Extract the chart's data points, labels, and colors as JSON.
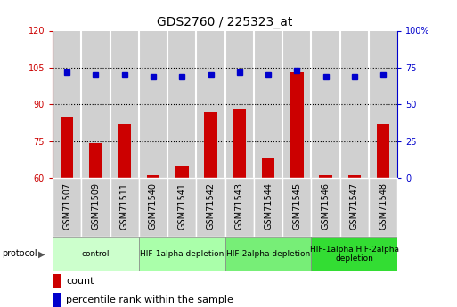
{
  "title": "GDS2760 / 225323_at",
  "samples": [
    "GSM71507",
    "GSM71509",
    "GSM71511",
    "GSM71540",
    "GSM71541",
    "GSM71542",
    "GSM71543",
    "GSM71544",
    "GSM71545",
    "GSM71546",
    "GSM71547",
    "GSM71548"
  ],
  "counts": [
    85,
    74,
    82,
    61,
    65,
    87,
    88,
    68,
    103,
    61,
    61,
    82
  ],
  "percentile_ranks": [
    72,
    70,
    70,
    69,
    69,
    70,
    72,
    70,
    73,
    69,
    69,
    70
  ],
  "ylim_left": [
    60,
    120
  ],
  "ylim_right": [
    0,
    100
  ],
  "yticks_left": [
    60,
    75,
    90,
    105,
    120
  ],
  "yticks_right": [
    0,
    25,
    50,
    75,
    100
  ],
  "groups": [
    {
      "label": "control",
      "start": 0,
      "end": 3,
      "color": "#ccffcc"
    },
    {
      "label": "HIF-1alpha depletion",
      "start": 3,
      "end": 6,
      "color": "#aaffaa"
    },
    {
      "label": "HIF-2alpha depletion",
      "start": 6,
      "end": 9,
      "color": "#77ee77"
    },
    {
      "label": "HIF-1alpha HIF-2alpha\ndepletion",
      "start": 9,
      "end": 12,
      "color": "#33dd33"
    }
  ],
  "bar_color": "#cc0000",
  "dot_color": "#0000cc",
  "grid_color": "#000000",
  "left_tick_color": "#cc0000",
  "right_tick_color": "#0000cc",
  "sample_box_color": "#d0d0d0",
  "title_fontsize": 10,
  "tick_fontsize": 7,
  "label_fontsize": 8
}
